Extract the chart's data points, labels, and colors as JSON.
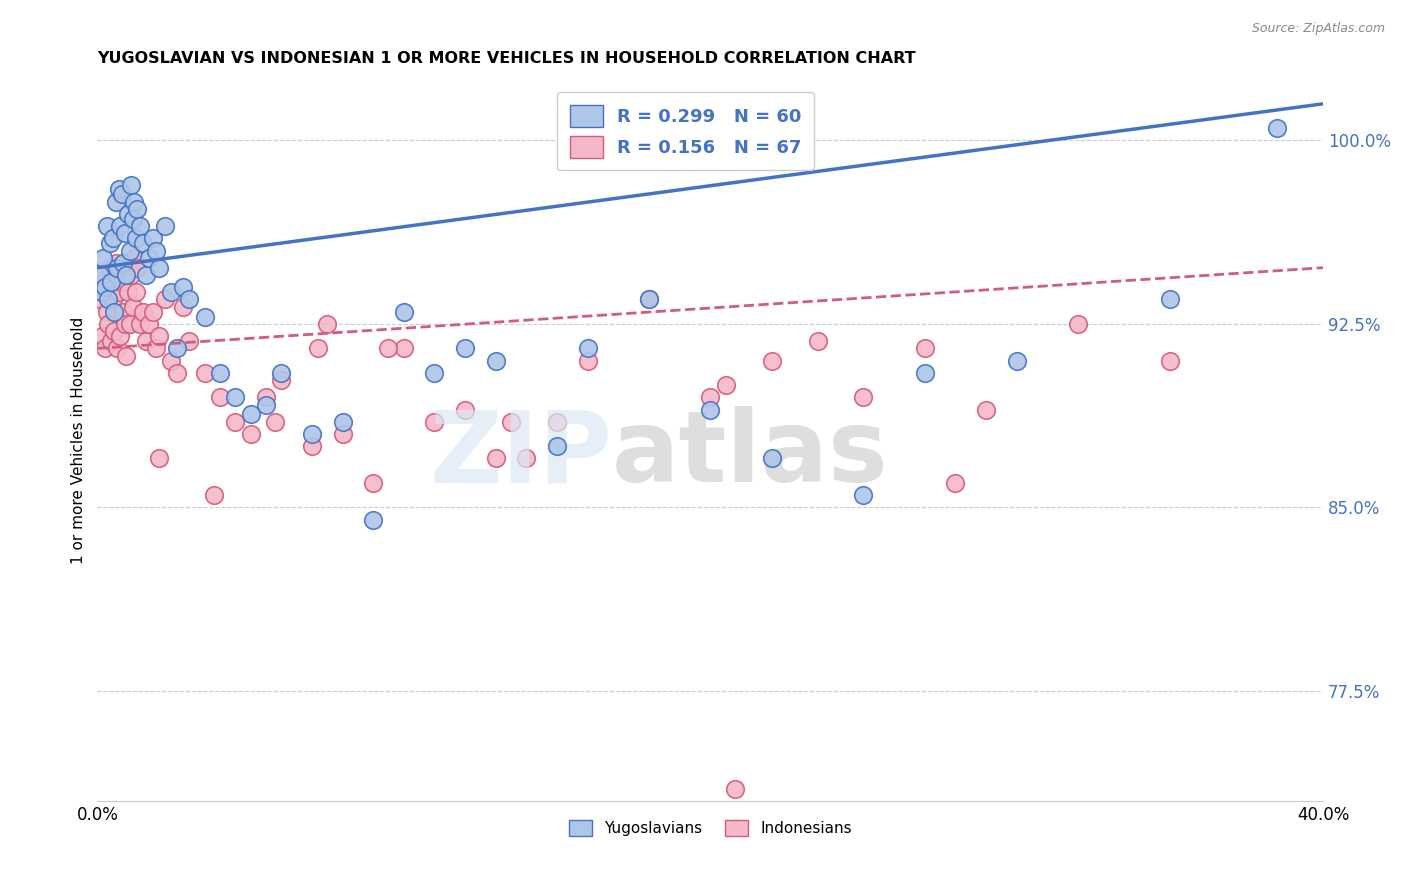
{
  "title": "YUGOSLAVIAN VS INDONESIAN 1 OR MORE VEHICLES IN HOUSEHOLD CORRELATION CHART",
  "source": "Source: ZipAtlas.com",
  "ylabel": "1 or more Vehicles in Household",
  "yticks": [
    77.5,
    85.0,
    92.5,
    100.0
  ],
  "ytick_labels": [
    "77.5%",
    "85.0%",
    "92.5%",
    "100.0%"
  ],
  "xmin": 0.0,
  "xmax": 40.0,
  "ymin": 73.0,
  "ymax": 102.5,
  "legend_r_yugo": "R = 0.299",
  "legend_n_yugo": "N = 60",
  "legend_r_indo": "R = 0.156",
  "legend_n_indo": "N = 67",
  "legend_label_yugo": "Yugoslavians",
  "legend_label_indo": "Indonesians",
  "color_yugo": "#aec6e8",
  "color_yugo_edge": "#4472c4",
  "color_yugo_line": "#4472c4",
  "color_indo": "#f4b8c8",
  "color_indo_edge": "#d45b7a",
  "color_indo_line": "#d45b7a",
  "yugo_x": [
    0.1,
    0.15,
    0.2,
    0.25,
    0.3,
    0.35,
    0.4,
    0.45,
    0.5,
    0.55,
    0.6,
    0.65,
    0.7,
    0.75,
    0.8,
    0.85,
    0.9,
    0.95,
    1.0,
    1.05,
    1.1,
    1.15,
    1.2,
    1.25,
    1.3,
    1.4,
    1.5,
    1.6,
    1.7,
    1.8,
    1.9,
    2.0,
    2.2,
    2.4,
    2.6,
    2.8,
    3.0,
    3.5,
    4.0,
    4.5,
    5.0,
    5.5,
    6.0,
    7.0,
    8.0,
    9.0,
    10.0,
    11.0,
    12.0,
    13.0,
    15.0,
    16.0,
    18.0,
    20.0,
    22.0,
    25.0,
    27.0,
    30.0,
    35.0,
    38.5
  ],
  "yugo_y": [
    94.5,
    93.8,
    95.2,
    94.0,
    96.5,
    93.5,
    95.8,
    94.2,
    96.0,
    93.0,
    97.5,
    94.8,
    98.0,
    96.5,
    97.8,
    95.0,
    96.2,
    94.5,
    97.0,
    95.5,
    98.2,
    96.8,
    97.5,
    96.0,
    97.2,
    96.5,
    95.8,
    94.5,
    95.2,
    96.0,
    95.5,
    94.8,
    96.5,
    93.8,
    91.5,
    94.0,
    93.5,
    92.8,
    90.5,
    89.5,
    88.8,
    89.2,
    90.5,
    88.0,
    88.5,
    84.5,
    93.0,
    90.5,
    91.5,
    91.0,
    87.5,
    91.5,
    93.5,
    89.0,
    87.0,
    85.5,
    90.5,
    91.0,
    93.5,
    100.5
  ],
  "indo_x": [
    0.1,
    0.15,
    0.2,
    0.25,
    0.3,
    0.35,
    0.4,
    0.45,
    0.5,
    0.55,
    0.6,
    0.65,
    0.7,
    0.75,
    0.8,
    0.85,
    0.9,
    0.95,
    1.0,
    1.05,
    1.1,
    1.15,
    1.2,
    1.25,
    1.3,
    1.4,
    1.5,
    1.6,
    1.7,
    1.8,
    1.9,
    2.0,
    2.2,
    2.4,
    2.6,
    2.8,
    3.0,
    3.5,
    4.0,
    4.5,
    5.0,
    5.5,
    6.0,
    7.0,
    8.0,
    9.0,
    10.0,
    11.0,
    12.0,
    14.0,
    15.0,
    16.0,
    18.0,
    20.0,
    22.0,
    25.0,
    27.0,
    29.0,
    32.0,
    35.0,
    3.8,
    7.5,
    13.0,
    20.5,
    9.5,
    23.5,
    28.0
  ],
  "indo_y": [
    93.5,
    92.0,
    94.5,
    91.5,
    93.0,
    92.5,
    94.8,
    91.8,
    93.5,
    92.2,
    95.0,
    91.5,
    93.8,
    92.0,
    94.2,
    93.0,
    92.5,
    91.2,
    93.8,
    92.5,
    94.5,
    93.2,
    95.2,
    93.8,
    94.8,
    92.5,
    93.0,
    91.8,
    92.5,
    93.0,
    91.5,
    92.0,
    93.5,
    91.0,
    90.5,
    93.2,
    91.8,
    90.5,
    89.5,
    88.5,
    88.0,
    89.5,
    90.2,
    87.5,
    88.0,
    86.0,
    91.5,
    88.5,
    89.0,
    87.0,
    88.5,
    91.0,
    93.5,
    89.5,
    91.0,
    89.5,
    91.5,
    89.0,
    92.5,
    91.0,
    85.5,
    92.5,
    87.0,
    90.0,
    91.5,
    91.8,
    86.0
  ],
  "indo_extra_x": [
    2.0,
    5.8,
    7.2,
    13.5,
    20.8
  ],
  "indo_extra_y": [
    87.0,
    88.5,
    91.5,
    88.5,
    73.5
  ],
  "yugo_line_x0": 0.0,
  "yugo_line_x1": 40.0,
  "yugo_line_y0": 94.8,
  "yugo_line_y1": 101.5,
  "indo_line_x0": 0.0,
  "indo_line_x1": 40.0,
  "indo_line_y0": 91.5,
  "indo_line_y1": 94.8
}
